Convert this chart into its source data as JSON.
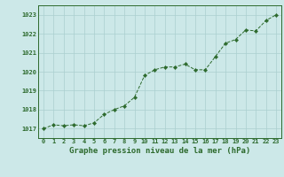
{
  "x": [
    0,
    1,
    2,
    3,
    4,
    5,
    6,
    7,
    8,
    9,
    10,
    11,
    12,
    13,
    14,
    15,
    16,
    17,
    18,
    19,
    20,
    21,
    22,
    23
  ],
  "y": [
    1017.0,
    1017.2,
    1017.15,
    1017.2,
    1017.15,
    1017.3,
    1017.75,
    1018.0,
    1018.2,
    1018.65,
    1019.8,
    1020.1,
    1020.25,
    1020.25,
    1020.4,
    1020.1,
    1020.1,
    1020.8,
    1021.5,
    1021.7,
    1022.2,
    1022.15,
    1022.7,
    1023.0
  ],
  "line_color": "#2d6a2d",
  "marker": "D",
  "marker_size": 2.2,
  "bg_color": "#cce8e8",
  "grid_color": "#aacfcf",
  "axis_color": "#2d6a2d",
  "tick_color": "#2d6a2d",
  "label_color": "#2d6a2d",
  "ylim": [
    1016.5,
    1023.5
  ],
  "yticks": [
    1017,
    1018,
    1019,
    1020,
    1021,
    1022,
    1023
  ],
  "xticks": [
    0,
    1,
    2,
    3,
    4,
    5,
    6,
    7,
    8,
    9,
    10,
    11,
    12,
    13,
    14,
    15,
    16,
    17,
    18,
    19,
    20,
    21,
    22,
    23
  ],
  "xlabel": "Graphe pression niveau de la mer (hPa)",
  "xlabel_fontsize": 6.5,
  "tick_fontsize": 5.0,
  "ytick_fontsize": 5.0,
  "linewidth": 0.7
}
